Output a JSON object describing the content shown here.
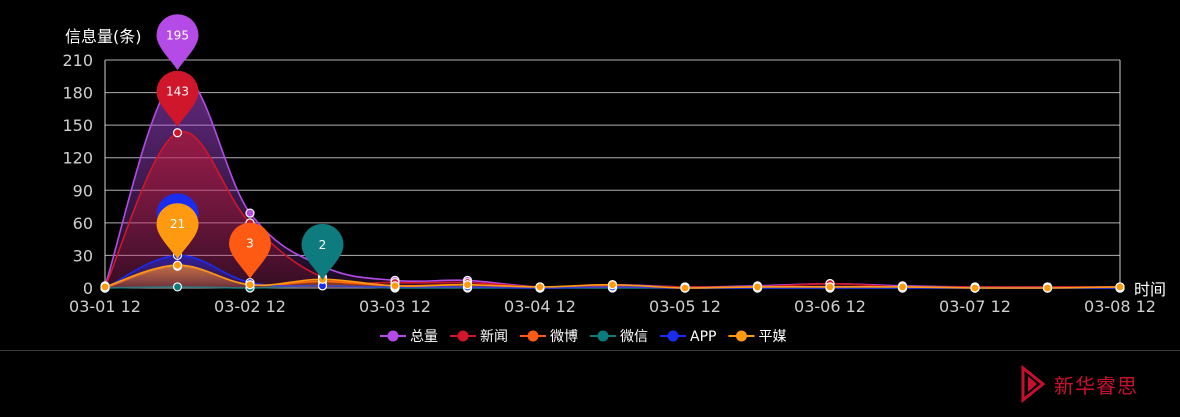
{
  "chart_data": {
    "type": "line",
    "ylabel": "信息量(条)",
    "xlabel": "时间",
    "ylim": [
      0,
      210
    ],
    "yticks": [
      0,
      30,
      60,
      90,
      120,
      150,
      180,
      210
    ],
    "xtick_labels": [
      "03-01 12",
      "03-02 12",
      "03-03 12",
      "03-04 12",
      "03-05 12",
      "03-06 12",
      "03-07 12",
      "03-08 12"
    ],
    "grid": true,
    "legend_position": "bottom",
    "series": [
      {
        "name": "总量",
        "color": "#b44be6",
        "values": [
          2,
          195,
          69,
          20,
          7,
          7,
          1,
          3,
          1,
          2,
          4,
          2,
          1,
          1,
          1
        ]
      },
      {
        "name": "新闻",
        "color": "#d0162a",
        "values": [
          1,
          143,
          60,
          10,
          5,
          5,
          1,
          2,
          1,
          1,
          4,
          1,
          1,
          1,
          1
        ]
      },
      {
        "name": "微博",
        "color": "#ff5a14",
        "values": [
          0,
          20,
          3,
          6,
          2,
          3,
          0,
          1,
          0,
          1,
          1,
          1,
          0,
          0,
          0
        ]
      },
      {
        "name": "微信",
        "color": "#0e7b7e",
        "values": [
          0,
          1,
          0,
          2,
          0,
          0,
          0,
          0,
          0,
          0,
          0,
          0,
          0,
          0,
          0
        ]
      },
      {
        "name": "APP",
        "color": "#1a2cf0",
        "values": [
          0,
          30,
          5,
          2,
          1,
          1,
          0,
          1,
          0,
          0,
          0,
          0,
          0,
          0,
          0
        ]
      },
      {
        "name": "平媒",
        "color": "#ff9a10",
        "values": [
          1,
          21,
          3,
          8,
          2,
          3,
          1,
          3,
          0,
          1,
          1,
          1,
          0,
          0,
          1
        ]
      }
    ],
    "max_markers": [
      {
        "series": "总量",
        "index": 1,
        "label": "195"
      },
      {
        "series": "新闻",
        "index": 1,
        "label": "143"
      },
      {
        "series": "APP",
        "index": 1,
        "label": ""
      },
      {
        "series": "平媒",
        "index": 1,
        "label": "21"
      },
      {
        "series": "微博",
        "index": 2,
        "label": "3"
      },
      {
        "series": "微信",
        "index": 3,
        "label": "2"
      }
    ]
  },
  "brand": {
    "name": "新华睿思",
    "color": "#c8102e"
  }
}
